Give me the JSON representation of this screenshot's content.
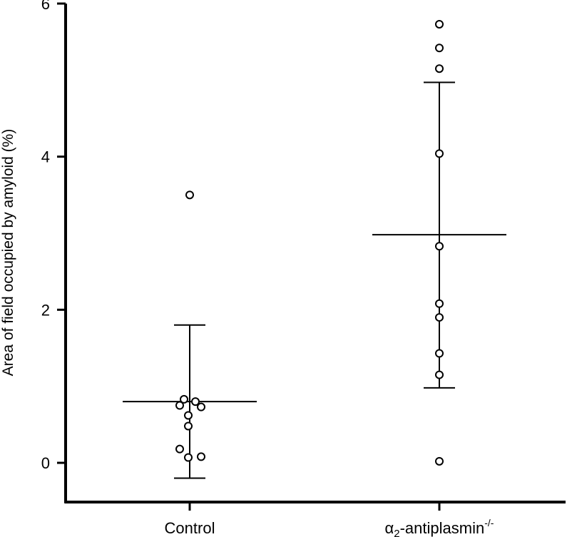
{
  "chart_data": {
    "type": "scatter",
    "title": "",
    "xlabel": "",
    "ylabel": "Area of field occupied by amyloid (%)",
    "ylim": [
      -0.25,
      6
    ],
    "yticks": [
      0,
      2,
      4,
      6
    ],
    "categories": [
      {
        "label": "Control",
        "label_main": "Control",
        "label_sub": "",
        "label_sup": ""
      },
      {
        "label": "α2-antiplasmin-/-",
        "label_main": "α",
        "label_sub": "2",
        "label_rest": "-antiplasmin",
        "label_sup": "-/-"
      }
    ],
    "series": [
      {
        "category": "Control",
        "points": [
          {
            "offset": 0.0,
            "y": 3.5
          },
          {
            "offset": -0.04,
            "y": 0.83
          },
          {
            "offset": 0.04,
            "y": 0.8
          },
          {
            "offset": -0.07,
            "y": 0.75
          },
          {
            "offset": 0.08,
            "y": 0.73
          },
          {
            "offset": -0.01,
            "y": 0.62
          },
          {
            "offset": -0.01,
            "y": 0.48
          },
          {
            "offset": -0.07,
            "y": 0.18
          },
          {
            "offset": -0.01,
            "y": 0.07
          },
          {
            "offset": 0.08,
            "y": 0.08
          }
        ],
        "mean": 0.8,
        "upper": 1.8,
        "lower": -0.2
      },
      {
        "category": "α2-antiplasmin-/-",
        "points": [
          {
            "offset": 0.0,
            "y": 5.73
          },
          {
            "offset": 0.0,
            "y": 5.42
          },
          {
            "offset": 0.0,
            "y": 5.15
          },
          {
            "offset": 0.0,
            "y": 4.04
          },
          {
            "offset": 0.0,
            "y": 2.83
          },
          {
            "offset": 0.0,
            "y": 2.08
          },
          {
            "offset": 0.0,
            "y": 1.9
          },
          {
            "offset": 0.0,
            "y": 1.43
          },
          {
            "offset": 0.0,
            "y": 1.15
          },
          {
            "offset": 0.0,
            "y": 0.02
          }
        ],
        "mean": 2.98,
        "upper": 4.97,
        "lower": 0.98
      }
    ],
    "grid": false,
    "marker": "open-circle",
    "marker_color": "#000000"
  }
}
